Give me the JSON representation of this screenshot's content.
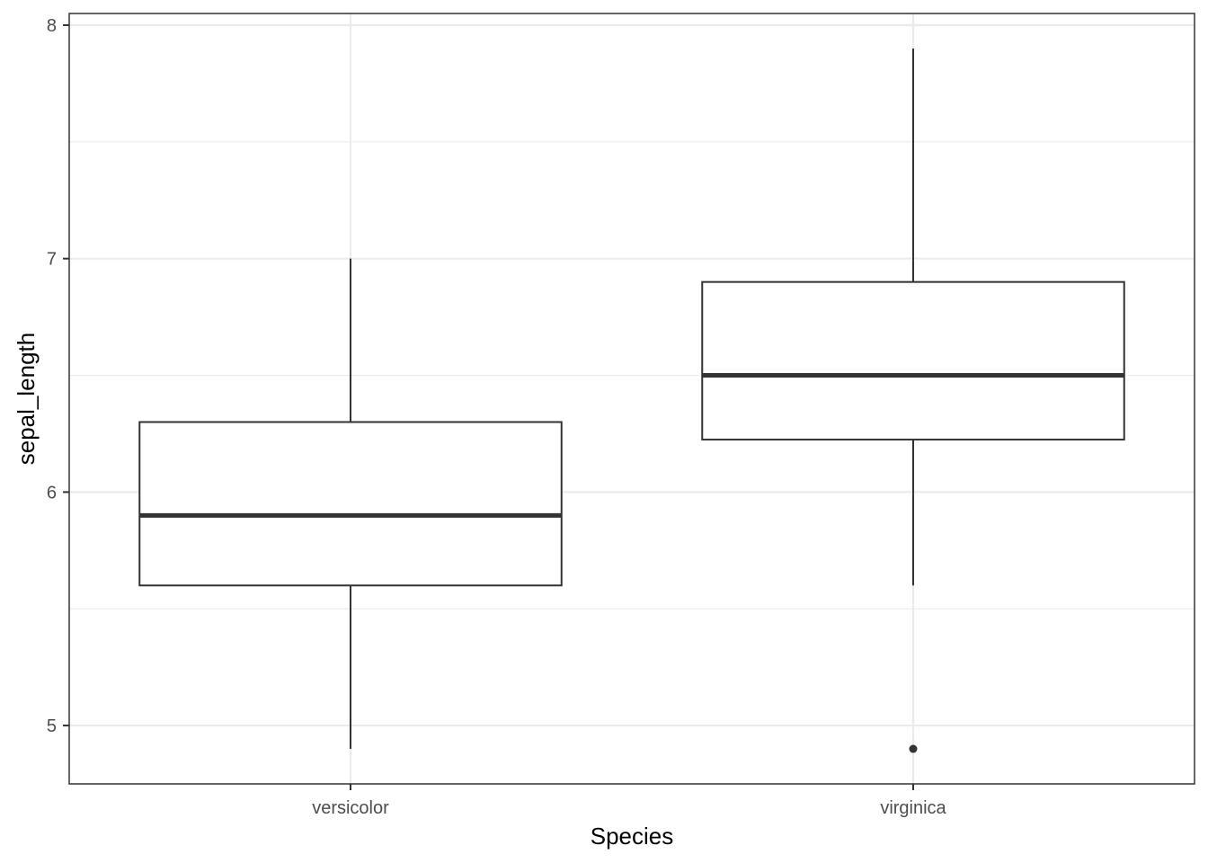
{
  "chart_data": {
    "type": "boxplot",
    "title": "",
    "xlabel": "Species",
    "ylabel": "sepal_length",
    "categories": [
      "versicolor",
      "virginica"
    ],
    "boxes": [
      {
        "category": "versicolor",
        "whisker_low": 4.9,
        "q1": 5.6,
        "median": 5.9,
        "q3": 6.3,
        "whisker_high": 7.0,
        "outliers": []
      },
      {
        "category": "virginica",
        "whisker_low": 5.6,
        "q1": 6.225,
        "median": 6.5,
        "q3": 6.9,
        "whisker_high": 7.9,
        "outliers": [
          4.9
        ]
      }
    ],
    "y_ticks": [
      5,
      6,
      7,
      8
    ],
    "y_tick_labels": [
      "5",
      "6",
      "7",
      "8"
    ],
    "ylim": [
      4.75,
      8.05
    ],
    "grid": true,
    "theme": "bw",
    "colors": {
      "grid": "#ebebeb",
      "box_stroke": "#333333",
      "axis_text": "#4d4d4d",
      "panel_border": "#333333"
    }
  }
}
